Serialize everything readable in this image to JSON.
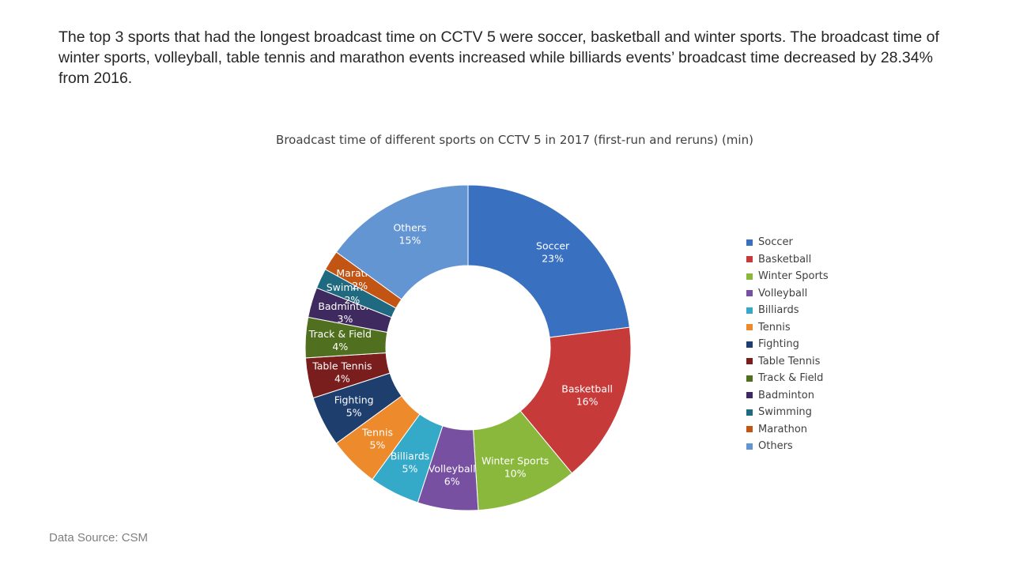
{
  "headline": "The top 3 sports that had the longest broadcast time on CCTV 5 were soccer, basketball and winter sports. The broadcast time of winter sports, volleyball, table tennis and marathon events increased while billiards events’ broadcast time decreased by 28.34% from 2016.",
  "source": "Data Source: CSM",
  "chart_data": {
    "type": "pie",
    "style": "donut",
    "title": "Broadcast time of different sports on CCTV 5 in 2017 (first-run and reruns) (min)",
    "legend_position": "right",
    "categories": [
      "Soccer",
      "Basketball",
      "Winter Sports",
      "Volleyball",
      "Billiards",
      "Tennis",
      "Fighting",
      "Table Tennis",
      "Track & Field",
      "Badminton",
      "Swimming",
      "Marathon",
      "Others"
    ],
    "values": [
      23,
      16,
      10,
      6,
      5,
      5,
      5,
      4,
      4,
      3,
      2,
      2,
      15
    ],
    "data_labels": [
      "23%",
      "16%",
      "10%",
      "6%",
      "5%",
      "5%",
      "5%",
      "4%",
      "4%",
      "3%",
      "2%",
      "2%",
      "15%"
    ],
    "colors": [
      "#3a70c0",
      "#c63a3a",
      "#8ab83c",
      "#7750a2",
      "#34a9c8",
      "#ec8a2c",
      "#1e3f6e",
      "#7a1d1d",
      "#507020",
      "#3e2a5e",
      "#1f6a80",
      "#c25414",
      "#6495d3"
    ]
  }
}
